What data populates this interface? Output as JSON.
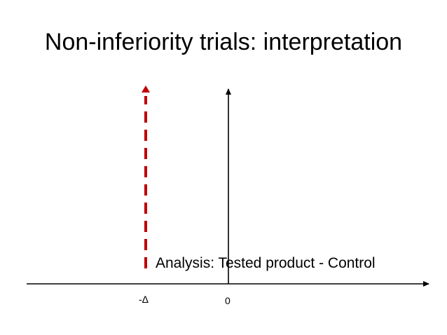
{
  "slide": {
    "title": "Non-inferiority trials: interpretation"
  },
  "diagram": {
    "analysis_label": "Analysis: Tested product - Control",
    "ticks": {
      "margin_label": "-Δ",
      "zero_label": "0"
    },
    "colors": {
      "margin_line": "#c00000",
      "axis": "#000000"
    }
  }
}
